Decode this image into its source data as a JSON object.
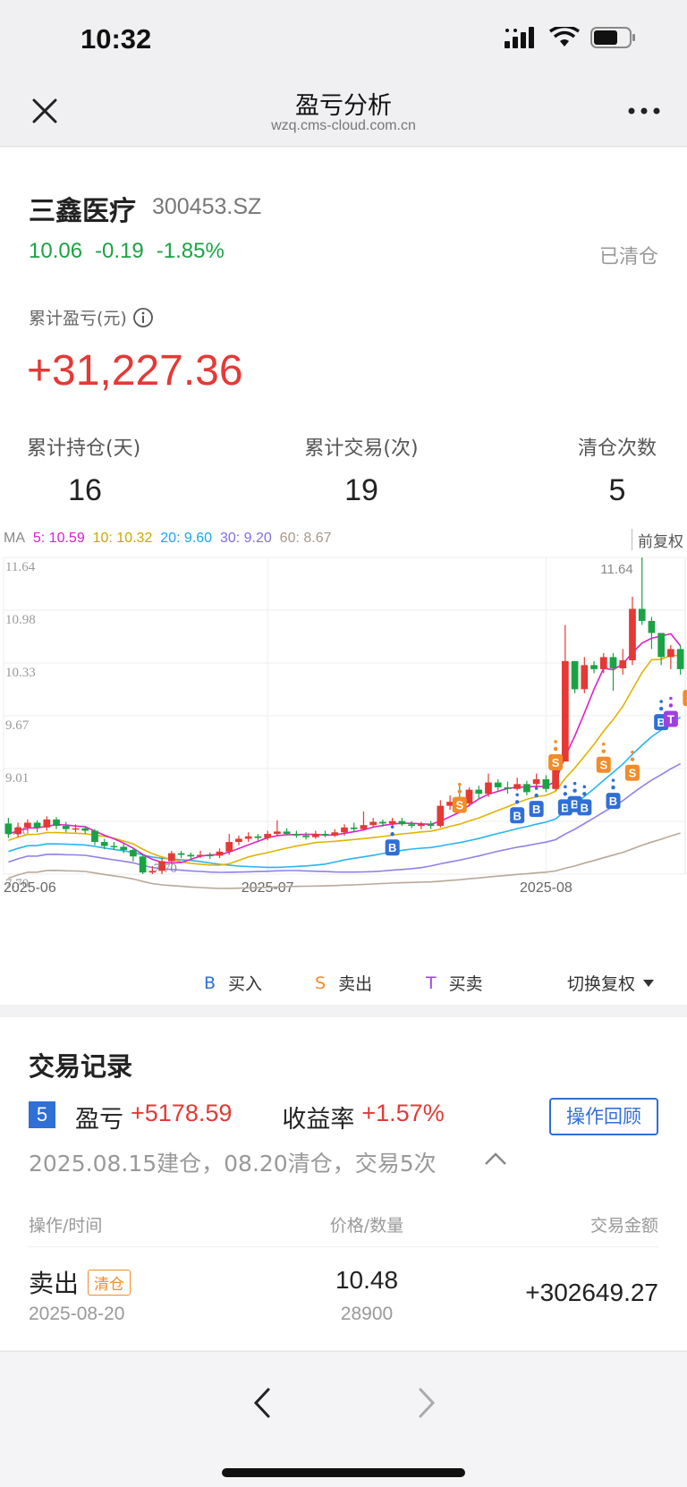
{
  "status": {
    "time": "10:32"
  },
  "nav": {
    "title": "盈亏分析",
    "url": "wzq.cms-cloud.com.cn"
  },
  "stock": {
    "name": "三鑫医疗",
    "code": "300453.SZ",
    "price": "10.06",
    "change": "-0.19",
    "change_pct": "-1.85%",
    "status": "已清仓"
  },
  "pnl": {
    "label": "累计盈亏(元)",
    "value": "+31,227.36"
  },
  "stats": [
    {
      "label": "累计持仓(天)",
      "value": "16"
    },
    {
      "label": "累计交易(次)",
      "value": "19"
    },
    {
      "label": "清仓次数",
      "value": "5"
    }
  ],
  "ma": {
    "prefix": "MA",
    "ma5": "5: 10.59",
    "ma10": "10: 10.32",
    "ma20": "20: 9.60",
    "ma30": "30: 9.20",
    "ma60": "60: 8.67"
  },
  "adjust_label": "前复权",
  "legend": {
    "buy_mark": "B",
    "buy": "买入",
    "sell_mark": "S",
    "sell": "卖出",
    "trade_mark": "T",
    "trade": "买卖",
    "switch": "切换复权"
  },
  "colors": {
    "up": "#e53935",
    "down": "#1aa345",
    "ma5": "#e020c8",
    "ma10": "#e0b400",
    "ma20": "#28b4f0",
    "ma30": "#9080e8",
    "ma60": "#b8a898",
    "buy": "#2f6fd6",
    "sell": "#f28c28",
    "trade": "#a040e0"
  },
  "chart_data": {
    "type": "candlestick",
    "x_ticks": [
      "2025-06",
      "2025-07",
      "2025-08"
    ],
    "y_ticks": [
      "11.64",
      "10.98",
      "10.33",
      "9.67",
      "9.01",
      "8.36",
      "7.70"
    ],
    "ylim": [
      7.7,
      11.64
    ],
    "high_label": "11.64",
    "low_label": "7.70",
    "candles": [
      [
        8.33,
        8.2,
        8.4,
        8.15
      ],
      [
        8.2,
        8.28,
        8.34,
        8.16
      ],
      [
        8.28,
        8.34,
        8.38,
        8.24
      ],
      [
        8.34,
        8.28,
        8.37,
        8.22
      ],
      [
        8.28,
        8.38,
        8.42,
        8.24
      ],
      [
        8.38,
        8.3,
        8.41,
        8.26
      ],
      [
        8.3,
        8.26,
        8.35,
        8.22
      ],
      [
        8.26,
        8.27,
        8.32,
        8.22
      ],
      [
        8.27,
        8.24,
        8.3,
        8.2
      ],
      [
        8.24,
        8.1,
        8.26,
        8.06
      ],
      [
        8.1,
        8.05,
        8.14,
        8.01
      ],
      [
        8.05,
        8.04,
        8.1,
        8.0
      ],
      [
        8.04,
        8.0,
        8.08,
        7.96
      ],
      [
        8.0,
        7.92,
        8.02,
        7.86
      ],
      [
        7.92,
        7.72,
        7.94,
        7.7
      ],
      [
        7.72,
        7.74,
        7.8,
        7.7
      ],
      [
        7.74,
        7.86,
        7.9,
        7.7
      ],
      [
        7.86,
        7.96,
        7.99,
        7.82
      ],
      [
        7.96,
        7.94,
        7.99,
        7.9
      ],
      [
        7.94,
        7.92,
        7.97,
        7.89
      ],
      [
        7.92,
        7.94,
        7.99,
        7.9
      ],
      [
        7.94,
        7.93,
        7.97,
        7.89
      ],
      [
        7.93,
        7.98,
        8.02,
        7.9
      ],
      [
        7.98,
        8.1,
        8.2,
        7.94
      ],
      [
        8.1,
        8.14,
        8.18,
        8.06
      ],
      [
        8.14,
        8.17,
        8.22,
        8.1
      ],
      [
        8.17,
        8.15,
        8.2,
        8.12
      ],
      [
        8.15,
        8.2,
        8.24,
        8.12
      ],
      [
        8.2,
        8.23,
        8.37,
        8.17
      ],
      [
        8.23,
        8.2,
        8.27,
        8.18
      ],
      [
        8.2,
        8.18,
        8.24,
        8.15
      ],
      [
        8.18,
        8.16,
        8.22,
        8.13
      ],
      [
        8.16,
        8.2,
        8.24,
        8.14
      ],
      [
        8.2,
        8.18,
        8.24,
        8.16
      ],
      [
        8.18,
        8.22,
        8.26,
        8.16
      ],
      [
        8.22,
        8.28,
        8.32,
        8.18
      ],
      [
        8.28,
        8.26,
        8.34,
        8.22
      ],
      [
        8.26,
        8.31,
        8.48,
        8.24
      ],
      [
        8.31,
        8.35,
        8.4,
        8.28
      ],
      [
        8.35,
        8.33,
        8.38,
        8.29
      ],
      [
        8.33,
        8.36,
        8.4,
        8.3
      ],
      [
        8.36,
        8.32,
        8.4,
        8.3
      ],
      [
        8.32,
        8.3,
        8.36,
        8.27
      ],
      [
        8.3,
        8.32,
        8.35,
        8.26
      ],
      [
        8.32,
        8.3,
        8.36,
        8.26
      ],
      [
        8.3,
        8.55,
        8.62,
        8.28
      ],
      [
        8.55,
        8.6,
        8.68,
        8.5
      ],
      [
        8.6,
        8.58,
        8.8,
        8.54
      ],
      [
        8.58,
        8.75,
        8.78,
        8.54
      ],
      [
        8.75,
        8.7,
        8.8,
        8.64
      ],
      [
        8.7,
        8.84,
        8.95,
        8.66
      ],
      [
        8.84,
        8.78,
        8.88,
        8.74
      ],
      [
        8.78,
        8.76,
        8.85,
        8.7
      ],
      [
        8.76,
        8.82,
        8.9,
        8.74
      ],
      [
        8.82,
        8.72,
        8.86,
        8.68
      ],
      [
        8.82,
        8.88,
        8.95,
        8.76
      ],
      [
        8.88,
        8.76,
        8.93,
        8.72
      ],
      [
        8.76,
        9.1,
        9.15,
        8.74
      ],
      [
        9.1,
        10.35,
        10.8,
        9.2
      ],
      [
        10.35,
        10.0,
        10.35,
        9.95
      ],
      [
        10.0,
        10.3,
        10.4,
        9.95
      ],
      [
        10.3,
        10.25,
        10.35,
        10.2
      ],
      [
        10.25,
        10.4,
        10.45,
        10.2
      ],
      [
        10.4,
        10.26,
        10.45,
        9.98
      ],
      [
        10.26,
        10.36,
        10.5,
        10.18
      ],
      [
        10.36,
        11.0,
        11.15,
        10.3
      ],
      [
        11.0,
        10.85,
        11.64,
        10.8
      ],
      [
        10.85,
        10.7,
        10.9,
        10.5
      ],
      [
        10.7,
        10.4,
        10.55,
        10.3
      ],
      [
        10.4,
        10.5,
        10.55,
        10.25
      ],
      [
        10.5,
        10.25,
        10.55,
        10.18
      ]
    ]
  },
  "trade_records": {
    "title": "交易记录",
    "index": "5",
    "pnl_label": "盈亏",
    "pnl_value": "+5178.59",
    "yield_label": "收益率",
    "yield_value": "+1.57%",
    "review_button": "操作回顾",
    "period": "2025.08.15建仓，08.20清仓，交易5次",
    "columns": [
      "操作/时间",
      "价格/数量",
      "交易金额"
    ],
    "rows": [
      {
        "op": "卖出",
        "tag": "清仓",
        "date": "2025-08-20",
        "price": "10.48",
        "qty": "28900",
        "amount": "+302649.27"
      }
    ]
  }
}
